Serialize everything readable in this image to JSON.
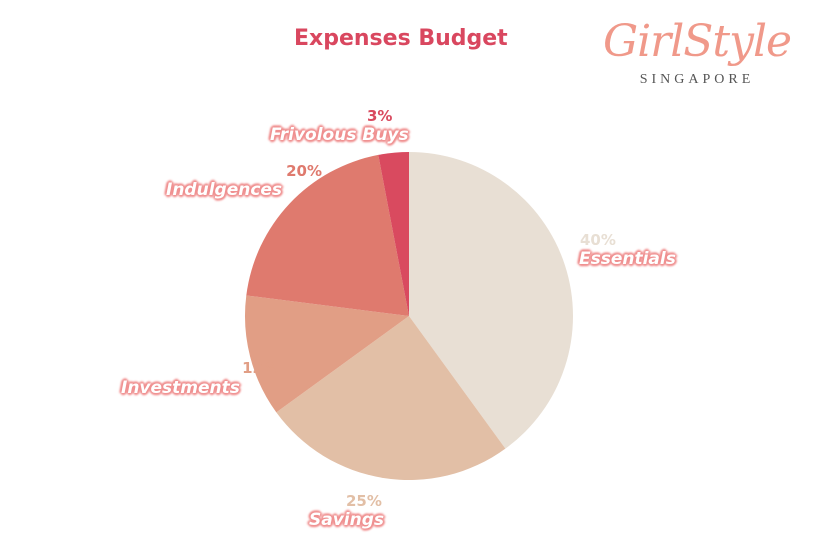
{
  "chart_data": {
    "type": "pie",
    "title": "Expenses Budget",
    "categories": [
      "Essentials",
      "Savings",
      "Investments",
      "Indulgences",
      "Frivolous Buys"
    ],
    "values": [
      40,
      25,
      12,
      20,
      3
    ],
    "value_labels": [
      "40%",
      "25%",
      "12%",
      "20%",
      "3%"
    ],
    "colors": [
      "#e8dfd4",
      "#e2bfa6",
      "#e19e85",
      "#df7a6e",
      "#d94a5f"
    ],
    "start_angle": "top",
    "direction": "clockwise",
    "legend": "none"
  },
  "logo": {
    "script": "GirlStyle",
    "sub": "SINGAPORE"
  }
}
